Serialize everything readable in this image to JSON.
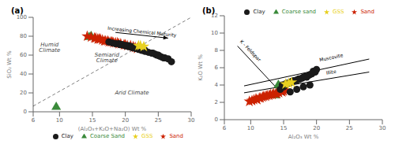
{
  "chart_data": [
    {
      "type": "scatter",
      "title": "(a)",
      "xlabel": "(Al₂O₃+K₂O+Na₂O) Wt %",
      "ylabel": "SiO₂ Wt %",
      "xlim": [
        6,
        30
      ],
      "ylim": [
        0,
        100
      ],
      "xticks": [
        6,
        10,
        15,
        20,
        25,
        30
      ],
      "yticks": [
        0,
        20,
        40,
        60,
        80,
        100
      ],
      "grid": false,
      "legend": "lower right",
      "series": [
        {
          "name": "Coarse Sand",
          "color": "#3a8a3a",
          "marker": "triangle",
          "x": [
            14.5,
            14.8,
            9.5
          ],
          "y": [
            79,
            80,
            5
          ]
        },
        {
          "name": "Sand",
          "color": "#cc2200",
          "marker": "star",
          "x": [
            14.2,
            14.8,
            15.3,
            15.8,
            16.2,
            16.5,
            17.0,
            17.3,
            17.8,
            18.0,
            18.2,
            18.5,
            19.0,
            19.3,
            19.8,
            20.0,
            20.3,
            20.8,
            21.2,
            21.5,
            21.8,
            15.5,
            16.0,
            16.8,
            17.5,
            18.8
          ],
          "y": [
            80,
            79,
            78,
            77,
            77,
            76,
            75,
            75,
            74,
            74,
            73,
            73,
            72,
            72,
            71,
            71,
            70,
            70,
            69,
            68,
            67,
            78,
            77,
            75,
            74,
            73
          ]
        },
        {
          "name": "Clay",
          "color": "#1a1a1a",
          "marker": "circle",
          "x": [
            17.5,
            18.0,
            18.5,
            19.0,
            19.2,
            19.5,
            20.0,
            20.2,
            20.5,
            20.8,
            21.0,
            21.2,
            21.5,
            21.8,
            22.0,
            22.2,
            22.5,
            22.8,
            23.0,
            23.5,
            24.0,
            24.2,
            24.5,
            24.8,
            25.0,
            25.2,
            25.5,
            25.8,
            26.0,
            26.5,
            27.0,
            20.5,
            21.0,
            22.0,
            23.0,
            19.5,
            20.0,
            21.5
          ],
          "y": [
            74,
            73,
            72,
            72,
            71,
            71,
            70,
            70,
            69,
            69,
            68,
            68,
            67,
            67,
            66,
            66,
            65,
            65,
            64,
            63,
            62,
            62,
            61,
            60,
            60,
            59,
            58,
            57,
            57,
            56,
            53,
            70,
            69,
            67,
            65,
            71,
            70,
            68
          ]
        },
        {
          "name": "GSS",
          "color": "#e8d020",
          "marker": "star",
          "x": [
            22.0,
            22.3,
            22.8
          ],
          "y": [
            70,
            70,
            69
          ]
        }
      ],
      "lines": [
        {
          "x": [
            6,
            30
          ],
          "y": [
            6,
            100
          ],
          "color": "#000000",
          "line_style": "dashed"
        }
      ],
      "arrows": [
        {
          "x": [
            18.5,
            26.5
          ],
          "y": [
            84,
            78
          ],
          "color": "#000000",
          "text": "Increasing Chemical Maturity",
          "text_x": 22.5,
          "text_y": 83
        }
      ],
      "annotations": [
        {
          "text": "Humid\nClimate",
          "x": 8.5,
          "y": 68
        },
        {
          "text": "Semiarid\nClimate",
          "x": 17.2,
          "y": 57
        },
        {
          "text": "Arid Climate",
          "x": 21,
          "y": 20
        }
      ]
    },
    {
      "type": "scatter",
      "title": "(b)",
      "xlabel": "Al₂O₃ Wt %",
      "ylabel": "K₂O Wt %",
      "xlim": [
        6,
        30
      ],
      "ylim": [
        0,
        12
      ],
      "xticks": [
        6,
        10,
        15,
        20,
        25,
        30
      ],
      "yticks": [
        0,
        2,
        4,
        6,
        8,
        10,
        12
      ],
      "grid": false,
      "legend": "upper right",
      "series": [
        {
          "name": "Coarse sand",
          "color": "#3a8a3a",
          "marker": "triangle",
          "x": [
            14.2,
            14.5,
            13.8
          ],
          "y": [
            4.0,
            3.8,
            2.8
          ]
        },
        {
          "name": "Sand",
          "color": "#cc2200",
          "marker": "star",
          "x": [
            9.8,
            10.2,
            10.5,
            11.0,
            11.3,
            11.8,
            12.0,
            12.3,
            12.8,
            13.0,
            13.3,
            13.8,
            14.0,
            14.3,
            14.8,
            15.0,
            15.3,
            10.8,
            11.5,
            12.5,
            13.5
          ],
          "y": [
            2.1,
            2.2,
            2.3,
            2.3,
            2.5,
            2.6,
            2.7,
            2.7,
            2.8,
            2.9,
            2.9,
            3.0,
            3.0,
            3.1,
            3.2,
            3.3,
            3.4,
            2.4,
            2.5,
            2.8,
            3.0
          ]
        },
        {
          "name": "Clay",
          "color": "#1a1a1a",
          "marker": "circle",
          "x": [
            14.5,
            15.0,
            15.3,
            15.8,
            16.0,
            16.3,
            16.8,
            17.0,
            17.3,
            17.8,
            18.0,
            18.3,
            18.8,
            19.0,
            19.3,
            19.8,
            14.8,
            15.5,
            16.5,
            17.5,
            18.5,
            16.0,
            17.0,
            18.0,
            19.0,
            19.5,
            20.0,
            15.2,
            16.2,
            17.2
          ],
          "y": [
            3.5,
            3.8,
            4.0,
            4.2,
            4.3,
            4.4,
            4.5,
            4.6,
            4.7,
            4.8,
            4.9,
            5.0,
            5.1,
            5.2,
            5.3,
            5.5,
            4.0,
            4.2,
            4.5,
            4.7,
            4.9,
            3.2,
            3.5,
            3.8,
            4.0,
            5.6,
            5.8,
            4.1,
            4.4,
            4.6
          ]
        },
        {
          "name": "GSS",
          "color": "#e8d020",
          "marker": "star",
          "x": [
            15.3,
            15.8,
            16.2
          ],
          "y": [
            4.1,
            4.2,
            4.3
          ]
        }
      ],
      "lines": [
        {
          "x": [
            8.0,
            15.0
          ],
          "y": [
            8.5,
            2.8
          ],
          "color": "#000000",
          "line_style": "solid"
        },
        {
          "x": [
            9.0,
            28.0
          ],
          "y": [
            3.9,
            7.0
          ],
          "color": "#000000",
          "line_style": "solid"
        },
        {
          "x": [
            9.0,
            28.0
          ],
          "y": [
            3.1,
            5.5
          ],
          "color": "#000000",
          "line_style": "solid"
        }
      ],
      "annotations": [
        {
          "text": "K - Feldspar",
          "x": 8.3,
          "y": 9.0
        },
        {
          "text": "Muscovite",
          "x": 20.5,
          "y": 6.7
        },
        {
          "text": "Illite",
          "x": 21.5,
          "y": 5.2
        }
      ]
    }
  ]
}
